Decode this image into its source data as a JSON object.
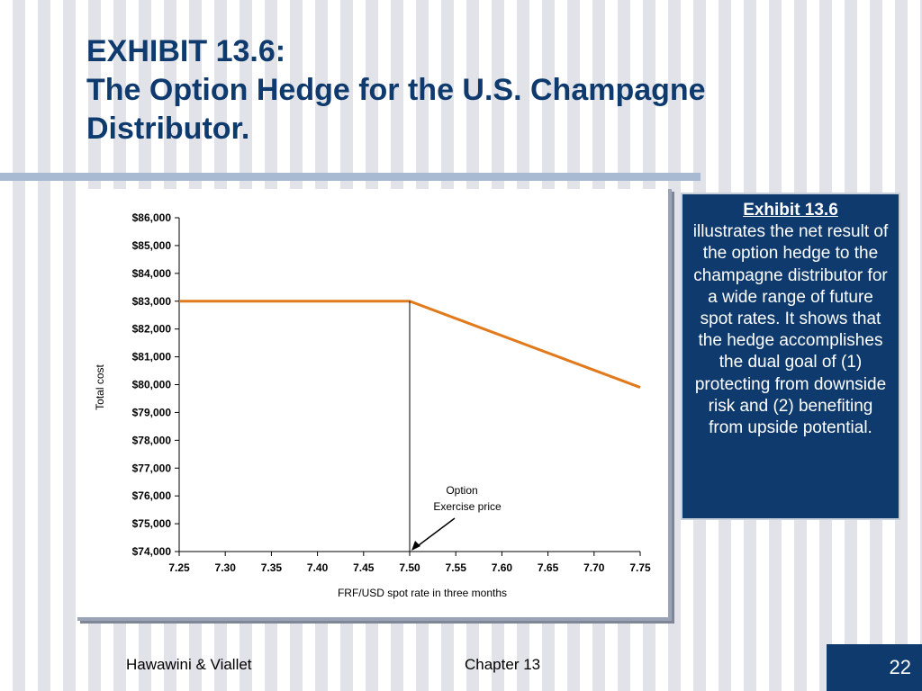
{
  "slide": {
    "title_line1": "EXHIBIT 13.6:",
    "title_line2": "The Option Hedge for the U.S. Champagne Distributor."
  },
  "sidebar": {
    "heading": "Exhibit 13.6",
    "body": "illustrates the net result of the option hedge to the champagne distributor for a wide range of future spot rates.  It shows that the hedge accomplishes the dual goal of (1) protecting from downside risk and (2) benefiting from upside potential."
  },
  "footer": {
    "author": "Hawawini & Viallet",
    "chapter": "Chapter 13",
    "page": "22"
  },
  "colors": {
    "title": "#0e3a6e",
    "line": "#e07a1c",
    "box": "#0e3a6e"
  },
  "chart_data": {
    "type": "line",
    "xlabel": "FRF/USD spot rate in three months",
    "ylabel": "Total cost",
    "x_ticks": [
      "7.25",
      "7.30",
      "7.35",
      "7.40",
      "7.45",
      "7.50",
      "7.55",
      "7.60",
      "7.65",
      "7.70",
      "7.75"
    ],
    "y_ticks": [
      "$74,000",
      "$75,000",
      "$76,000",
      "$77,000",
      "$78,000",
      "$79,000",
      "$80,000",
      "$81,000",
      "$82,000",
      "$83,000",
      "$84,000",
      "$85,000",
      "$86,000"
    ],
    "xlim": [
      7.25,
      7.75
    ],
    "ylim": [
      74000,
      86000
    ],
    "series": [
      {
        "x": [
          7.25,
          7.5,
          7.75
        ],
        "y": [
          83000,
          83000,
          79900
        ]
      }
    ],
    "annotation": {
      "line1": "Option",
      "line2": "Exercise price",
      "x": 7.5
    }
  }
}
